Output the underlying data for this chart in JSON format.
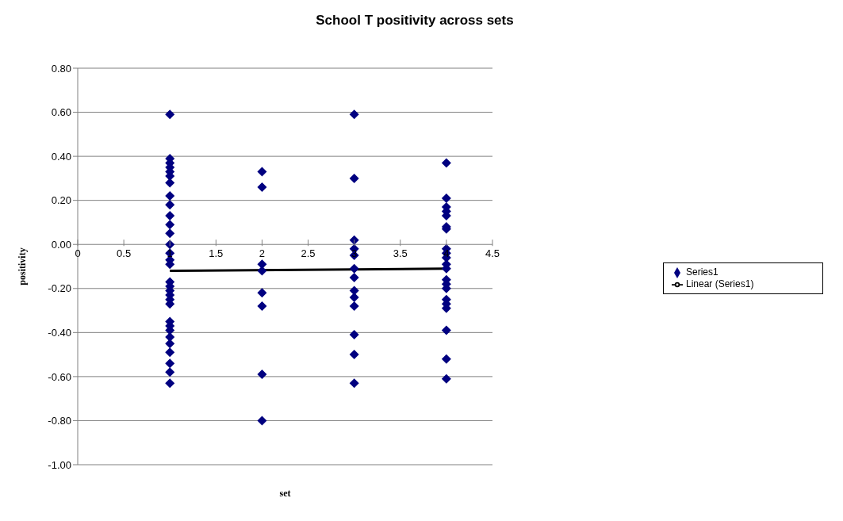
{
  "chart_data": {
    "type": "scatter",
    "title": "School T positivity across sets",
    "xlabel": "set",
    "ylabel": "positivity",
    "xlim": [
      0,
      4.5
    ],
    "xticks": [
      0,
      0.5,
      1,
      1.5,
      2,
      2.5,
      3,
      3.5,
      4,
      4.5
    ],
    "ylim": [
      -1,
      0.8
    ],
    "yticks": [
      {
        "value": 0.8,
        "label": "0.80"
      },
      {
        "value": 0.6,
        "label": "0.60"
      },
      {
        "value": 0.4,
        "label": "0.40"
      },
      {
        "value": 0.2,
        "label": "0.20"
      },
      {
        "value": 0,
        "label": "0.00"
      },
      {
        "value": -0.2,
        "label": "-0.20"
      },
      {
        "value": -0.4,
        "label": "-0.40"
      },
      {
        "value": -0.6,
        "label": "-0.60"
      },
      {
        "value": -0.8,
        "label": "-0.80"
      },
      {
        "value": -1,
        "label": "-1.00"
      }
    ],
    "grid": "y",
    "legend": "right",
    "marker": "diamond",
    "series": [
      {
        "name": "Series1",
        "color": "#000080",
        "x": [
          1,
          1,
          1,
          1,
          1,
          1,
          1,
          1,
          1,
          1,
          1,
          1,
          1,
          1,
          1,
          1,
          1,
          1,
          1,
          1,
          1,
          1,
          1,
          1,
          1,
          1,
          1,
          1,
          1,
          1,
          1,
          2,
          2,
          2,
          2,
          2,
          2,
          2,
          2,
          3,
          3,
          3,
          3,
          3,
          3,
          3,
          3,
          3,
          3,
          3,
          3,
          3,
          4,
          4,
          4,
          4,
          4,
          4,
          4,
          4,
          4,
          4,
          4,
          4,
          4,
          4,
          4,
          4,
          4,
          4,
          4,
          4,
          4
        ],
        "values": [
          0.59,
          0.39,
          0.37,
          0.35,
          0.33,
          0.31,
          0.28,
          0.22,
          0.18,
          0.13,
          0.09,
          0.05,
          0.0,
          -0.04,
          -0.07,
          -0.09,
          -0.17,
          -0.19,
          -0.21,
          -0.23,
          -0.25,
          -0.27,
          -0.35,
          -0.37,
          -0.39,
          -0.42,
          -0.45,
          -0.49,
          -0.54,
          -0.58,
          -0.63,
          0.33,
          0.26,
          -0.09,
          -0.12,
          -0.22,
          -0.28,
          -0.59,
          -0.8,
          0.59,
          0.3,
          0.02,
          -0.02,
          -0.05,
          -0.11,
          -0.15,
          -0.21,
          -0.24,
          -0.28,
          -0.41,
          -0.5,
          -0.63,
          0.37,
          0.21,
          0.17,
          0.15,
          0.13,
          0.08,
          0.07,
          -0.02,
          -0.04,
          -0.06,
          -0.09,
          -0.11,
          -0.16,
          -0.18,
          -0.2,
          -0.25,
          -0.27,
          -0.29,
          -0.39,
          -0.52,
          -0.61
        ]
      },
      {
        "name": "Linear (Series1)",
        "type": "line",
        "color": "#000000",
        "x": [
          1,
          4
        ],
        "values": [
          -0.12,
          -0.11
        ],
        "marker": "none",
        "line_style": "solid"
      }
    ]
  }
}
